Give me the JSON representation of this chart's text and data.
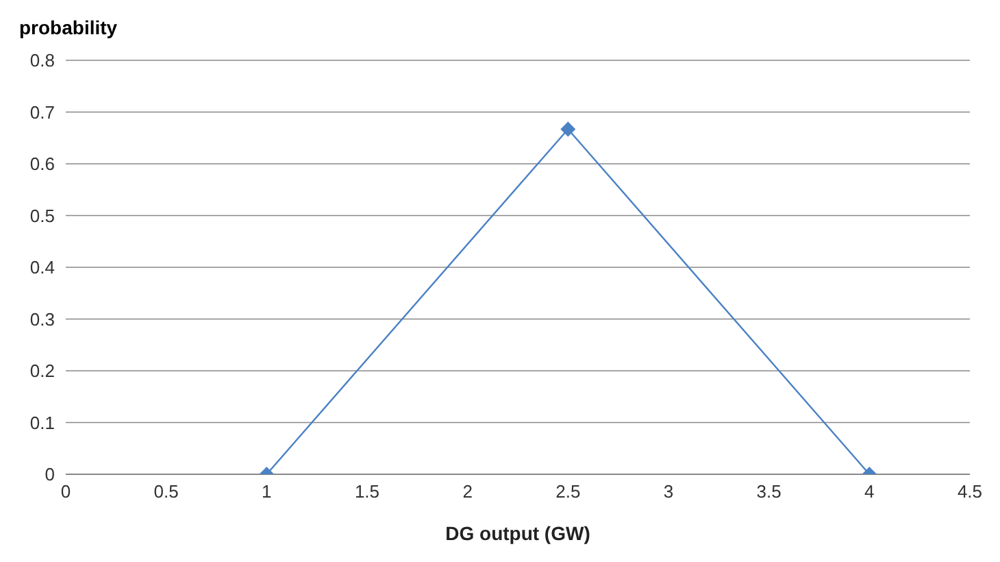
{
  "chart_data": {
    "type": "line",
    "xlabel": "DG output (GW)",
    "ylabel": "probability",
    "x": [
      1,
      2.5,
      4
    ],
    "series": [
      {
        "color": "#4a82c4",
        "values": [
          0,
          0.667,
          0
        ]
      }
    ],
    "xlim": [
      0,
      4.5
    ],
    "xticks": [
      0,
      0.5,
      1,
      1.5,
      2,
      2.5,
      3,
      3.5,
      4,
      4.5
    ],
    "ylim": [
      0,
      0.8
    ],
    "yticks": [
      0,
      0.1,
      0.2,
      0.3,
      0.4,
      0.5,
      0.6,
      0.7,
      0.8
    ],
    "grid": "y",
    "marker": "diamond",
    "line_style": "solid",
    "legend": false
  }
}
